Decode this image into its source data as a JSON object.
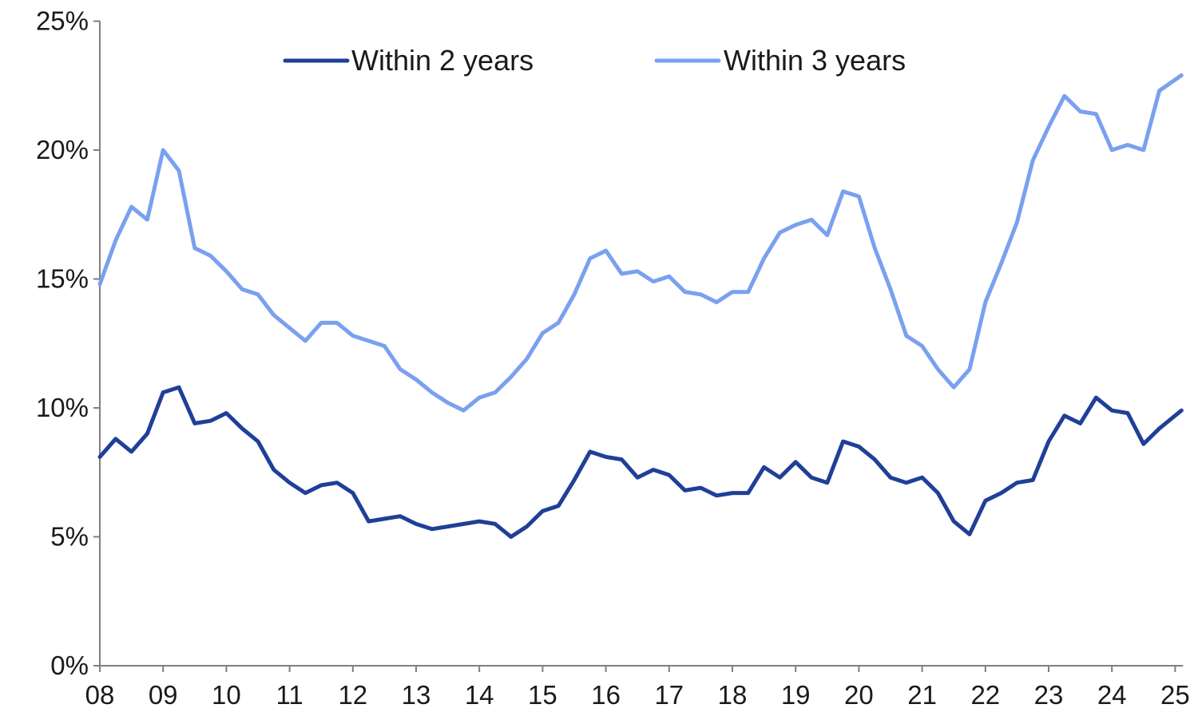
{
  "chart_data": {
    "type": "line",
    "title": "",
    "xlabel": "",
    "ylabel": "",
    "x_ticks": [
      "08",
      "09",
      "10",
      "11",
      "12",
      "13",
      "14",
      "15",
      "16",
      "17",
      "18",
      "19",
      "20",
      "21",
      "22",
      "23",
      "24",
      "25"
    ],
    "y_ticks": [
      "0%",
      "5%",
      "10%",
      "15%",
      "20%",
      "25%"
    ],
    "ylim": [
      0,
      25
    ],
    "xlim": [
      2008,
      2025.1
    ],
    "grid": false,
    "legend_position": "top",
    "series": [
      {
        "name": "Within 2 years",
        "color": "#1f3f98",
        "points": [
          [
            2008.0,
            8.1
          ],
          [
            2008.25,
            8.8
          ],
          [
            2008.5,
            8.3
          ],
          [
            2008.75,
            9.0
          ],
          [
            2009.0,
            10.6
          ],
          [
            2009.25,
            10.8
          ],
          [
            2009.5,
            9.4
          ],
          [
            2009.75,
            9.5
          ],
          [
            2010.0,
            9.8
          ],
          [
            2010.25,
            9.2
          ],
          [
            2010.5,
            8.7
          ],
          [
            2010.75,
            7.6
          ],
          [
            2011.0,
            7.1
          ],
          [
            2011.25,
            6.7
          ],
          [
            2011.5,
            7.0
          ],
          [
            2011.75,
            7.1
          ],
          [
            2012.0,
            6.7
          ],
          [
            2012.25,
            5.6
          ],
          [
            2012.5,
            5.7
          ],
          [
            2012.75,
            5.8
          ],
          [
            2013.0,
            5.5
          ],
          [
            2013.25,
            5.3
          ],
          [
            2013.5,
            5.4
          ],
          [
            2013.75,
            5.5
          ],
          [
            2014.0,
            5.6
          ],
          [
            2014.25,
            5.5
          ],
          [
            2014.5,
            5.0
          ],
          [
            2014.75,
            5.4
          ],
          [
            2015.0,
            6.0
          ],
          [
            2015.25,
            6.2
          ],
          [
            2015.5,
            7.2
          ],
          [
            2015.75,
            8.3
          ],
          [
            2016.0,
            8.1
          ],
          [
            2016.25,
            8.0
          ],
          [
            2016.5,
            7.3
          ],
          [
            2016.75,
            7.6
          ],
          [
            2017.0,
            7.4
          ],
          [
            2017.25,
            6.8
          ],
          [
            2017.5,
            6.9
          ],
          [
            2017.75,
            6.6
          ],
          [
            2018.0,
            6.7
          ],
          [
            2018.25,
            6.7
          ],
          [
            2018.5,
            7.7
          ],
          [
            2018.75,
            7.3
          ],
          [
            2019.0,
            7.9
          ],
          [
            2019.25,
            7.3
          ],
          [
            2019.5,
            7.1
          ],
          [
            2019.75,
            8.7
          ],
          [
            2020.0,
            8.5
          ],
          [
            2020.25,
            8.0
          ],
          [
            2020.5,
            7.3
          ],
          [
            2020.75,
            7.1
          ],
          [
            2021.0,
            7.3
          ],
          [
            2021.25,
            6.7
          ],
          [
            2021.5,
            5.6
          ],
          [
            2021.75,
            5.1
          ],
          [
            2022.0,
            6.4
          ],
          [
            2022.25,
            6.7
          ],
          [
            2022.5,
            7.1
          ],
          [
            2022.75,
            7.2
          ],
          [
            2023.0,
            8.7
          ],
          [
            2023.25,
            9.7
          ],
          [
            2023.5,
            9.4
          ],
          [
            2023.75,
            10.4
          ],
          [
            2024.0,
            9.9
          ],
          [
            2024.25,
            9.8
          ],
          [
            2024.5,
            8.6
          ],
          [
            2024.75,
            9.2
          ],
          [
            2025.1,
            9.9
          ]
        ]
      },
      {
        "name": "Within 3 years",
        "color": "#7aa0f0",
        "points": [
          [
            2008.0,
            14.8
          ],
          [
            2008.25,
            16.5
          ],
          [
            2008.5,
            17.8
          ],
          [
            2008.75,
            17.3
          ],
          [
            2009.0,
            20.0
          ],
          [
            2009.25,
            19.2
          ],
          [
            2009.5,
            16.2
          ],
          [
            2009.75,
            15.9
          ],
          [
            2010.0,
            15.3
          ],
          [
            2010.25,
            14.6
          ],
          [
            2010.5,
            14.4
          ],
          [
            2010.75,
            13.6
          ],
          [
            2011.0,
            13.1
          ],
          [
            2011.25,
            12.6
          ],
          [
            2011.5,
            13.3
          ],
          [
            2011.75,
            13.3
          ],
          [
            2012.0,
            12.8
          ],
          [
            2012.25,
            12.6
          ],
          [
            2012.5,
            12.4
          ],
          [
            2012.75,
            11.5
          ],
          [
            2013.0,
            11.1
          ],
          [
            2013.25,
            10.6
          ],
          [
            2013.5,
            10.2
          ],
          [
            2013.75,
            9.9
          ],
          [
            2014.0,
            10.4
          ],
          [
            2014.25,
            10.6
          ],
          [
            2014.5,
            11.2
          ],
          [
            2014.75,
            11.9
          ],
          [
            2015.0,
            12.9
          ],
          [
            2015.25,
            13.3
          ],
          [
            2015.5,
            14.4
          ],
          [
            2015.75,
            15.8
          ],
          [
            2016.0,
            16.1
          ],
          [
            2016.25,
            15.2
          ],
          [
            2016.5,
            15.3
          ],
          [
            2016.75,
            14.9
          ],
          [
            2017.0,
            15.1
          ],
          [
            2017.25,
            14.5
          ],
          [
            2017.5,
            14.4
          ],
          [
            2017.75,
            14.1
          ],
          [
            2018.0,
            14.5
          ],
          [
            2018.25,
            14.5
          ],
          [
            2018.5,
            15.8
          ],
          [
            2018.75,
            16.8
          ],
          [
            2019.0,
            17.1
          ],
          [
            2019.25,
            17.3
          ],
          [
            2019.5,
            16.7
          ],
          [
            2019.75,
            18.4
          ],
          [
            2020.0,
            18.2
          ],
          [
            2020.25,
            16.2
          ],
          [
            2020.5,
            14.6
          ],
          [
            2020.75,
            12.8
          ],
          [
            2021.0,
            12.4
          ],
          [
            2021.25,
            11.5
          ],
          [
            2021.5,
            10.8
          ],
          [
            2021.75,
            11.5
          ],
          [
            2022.0,
            14.1
          ],
          [
            2022.25,
            15.6
          ],
          [
            2022.5,
            17.2
          ],
          [
            2022.75,
            19.6
          ],
          [
            2023.0,
            20.9
          ],
          [
            2023.25,
            22.1
          ],
          [
            2023.5,
            21.5
          ],
          [
            2023.75,
            21.4
          ],
          [
            2024.0,
            20.0
          ],
          [
            2024.25,
            20.2
          ],
          [
            2024.5,
            20.0
          ],
          [
            2024.75,
            22.3
          ],
          [
            2025.1,
            22.9
          ]
        ]
      }
    ]
  }
}
